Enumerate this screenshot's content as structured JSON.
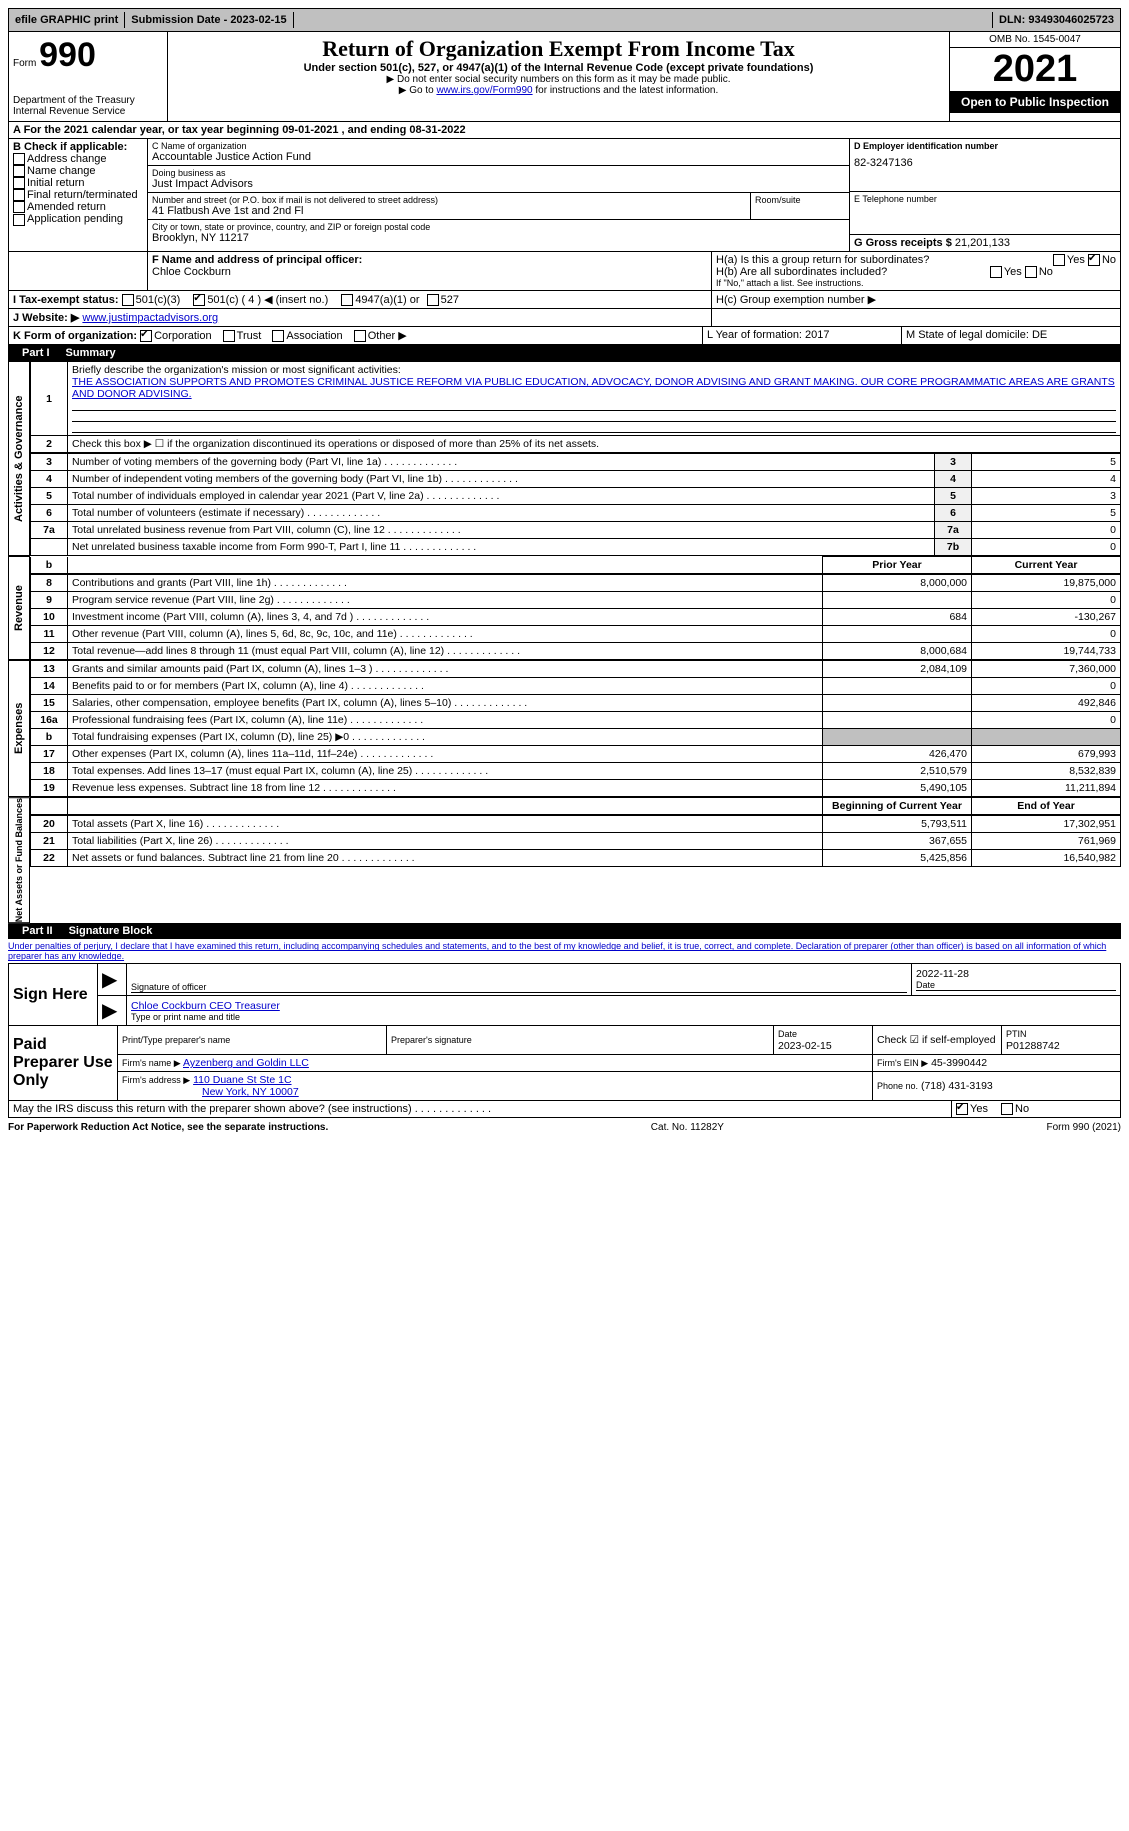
{
  "topbar": {
    "efile": "efile GRAPHIC print",
    "submission_label": "Submission Date - 2023-02-15",
    "dln": "DLN: 93493046025723"
  },
  "header": {
    "form_word": "Form",
    "form_num": "990",
    "dept": "Department of the Treasury",
    "irs": "Internal Revenue Service",
    "title": "Return of Organization Exempt From Income Tax",
    "subtitle": "Under section 501(c), 527, or 4947(a)(1) of the Internal Revenue Code (except private foundations)",
    "note1": "▶ Do not enter social security numbers on this form as it may be made public.",
    "note2_pre": "▶ Go to ",
    "note2_link": "www.irs.gov/Form990",
    "note2_post": " for instructions and the latest information.",
    "omb": "OMB No. 1545-0047",
    "year": "2021",
    "open": "Open to Public Inspection"
  },
  "period": {
    "A": "A For the 2021 calendar year, or tax year beginning 09-01-2021   , and ending 08-31-2022"
  },
  "B": {
    "label": "B Check if applicable:",
    "opts": [
      "Address change",
      "Name change",
      "Initial return",
      "Final return/terminated",
      "Amended return",
      "Application pending"
    ]
  },
  "C": {
    "name_label": "C Name of organization",
    "name": "Accountable Justice Action Fund",
    "dba_label": "Doing business as",
    "dba": "Just Impact Advisors",
    "street_label": "Number and street (or P.O. box if mail is not delivered to street address)",
    "street": "41 Flatbush Ave 1st and 2nd Fl",
    "room_label": "Room/suite",
    "city_label": "City or town, state or province, country, and ZIP or foreign postal code",
    "city": "Brooklyn, NY  11217"
  },
  "D": {
    "label": "D Employer identification number",
    "value": "82-3247136"
  },
  "E": {
    "label": "E Telephone number",
    "value": ""
  },
  "G": {
    "label": "G Gross receipts $",
    "value": "21,201,133"
  },
  "F": {
    "label": "F  Name and address of principal officer:",
    "name": "Chloe Cockburn"
  },
  "H": {
    "a": "H(a)  Is this a group return for subordinates?",
    "b": "H(b)  Are all subordinates included?",
    "note": "If \"No,\" attach a list. See instructions.",
    "c": "H(c)  Group exemption number ▶",
    "yes": "Yes",
    "no": "No"
  },
  "I": {
    "label": "I   Tax-exempt status:",
    "o1": "501(c)(3)",
    "o2": "501(c) ( 4 ) ◀ (insert no.)",
    "o3": "4947(a)(1) or",
    "o4": "527"
  },
  "J": {
    "label": "J   Website: ▶",
    "value": "www.justimpactadvisors.org"
  },
  "K": {
    "label": "K Form of organization:",
    "opts": [
      "Corporation",
      "Trust",
      "Association",
      "Other ▶"
    ],
    "L": "L Year of formation: 2017",
    "M": "M State of legal domicile: DE"
  },
  "part1": {
    "title": "Part I",
    "name": "Summary",
    "l1_label": "Briefly describe the organization's mission or most significant activities:",
    "l1_text": "THE ASSOCIATION SUPPORTS AND PROMOTES CRIMINAL JUSTICE REFORM VIA PUBLIC EDUCATION, ADVOCACY, DONOR ADVISING AND GRANT MAKING. OUR CORE PROGRAMMATIC AREAS ARE GRANTS AND DONOR ADVISING.",
    "l2": "Check this box ▶ ☐ if the organization discontinued its operations or disposed of more than 25% of its net assets.",
    "lines_ag": [
      {
        "n": "3",
        "t": "Number of voting members of the governing body (Part VI, line 1a)",
        "b": "3",
        "v": "5"
      },
      {
        "n": "4",
        "t": "Number of independent voting members of the governing body (Part VI, line 1b)",
        "b": "4",
        "v": "4"
      },
      {
        "n": "5",
        "t": "Total number of individuals employed in calendar year 2021 (Part V, line 2a)",
        "b": "5",
        "v": "3"
      },
      {
        "n": "6",
        "t": "Total number of volunteers (estimate if necessary)",
        "b": "6",
        "v": "5"
      },
      {
        "n": "7a",
        "t": "Total unrelated business revenue from Part VIII, column (C), line 12",
        "b": "7a",
        "v": "0"
      },
      {
        "n": "",
        "t": "Net unrelated business taxable income from Form 990-T, Part I, line 11",
        "b": "7b",
        "v": "0"
      }
    ],
    "col_prior": "Prior Year",
    "col_current": "Current Year",
    "revenue": [
      {
        "n": "8",
        "t": "Contributions and grants (Part VIII, line 1h)",
        "p": "8,000,000",
        "c": "19,875,000"
      },
      {
        "n": "9",
        "t": "Program service revenue (Part VIII, line 2g)",
        "p": "",
        "c": "0"
      },
      {
        "n": "10",
        "t": "Investment income (Part VIII, column (A), lines 3, 4, and 7d )",
        "p": "684",
        "c": "-130,267"
      },
      {
        "n": "11",
        "t": "Other revenue (Part VIII, column (A), lines 5, 6d, 8c, 9c, 10c, and 11e)",
        "p": "",
        "c": "0"
      },
      {
        "n": "12",
        "t": "Total revenue—add lines 8 through 11 (must equal Part VIII, column (A), line 12)",
        "p": "8,000,684",
        "c": "19,744,733"
      }
    ],
    "expenses": [
      {
        "n": "13",
        "t": "Grants and similar amounts paid (Part IX, column (A), lines 1–3 )",
        "p": "2,084,109",
        "c": "7,360,000"
      },
      {
        "n": "14",
        "t": "Benefits paid to or for members (Part IX, column (A), line 4)",
        "p": "",
        "c": "0"
      },
      {
        "n": "15",
        "t": "Salaries, other compensation, employee benefits (Part IX, column (A), lines 5–10)",
        "p": "",
        "c": "492,846"
      },
      {
        "n": "16a",
        "t": "Professional fundraising fees (Part IX, column (A), line 11e)",
        "p": "",
        "c": "0"
      },
      {
        "n": "b",
        "t": "Total fundraising expenses (Part IX, column (D), line 25) ▶0",
        "p": "GRAY",
        "c": "GRAY"
      },
      {
        "n": "17",
        "t": "Other expenses (Part IX, column (A), lines 11a–11d, 11f–24e)",
        "p": "426,470",
        "c": "679,993"
      },
      {
        "n": "18",
        "t": "Total expenses. Add lines 13–17 (must equal Part IX, column (A), line 25)",
        "p": "2,510,579",
        "c": "8,532,839"
      },
      {
        "n": "19",
        "t": "Revenue less expenses. Subtract line 18 from line 12",
        "p": "5,490,105",
        "c": "11,211,894"
      }
    ],
    "col_boy": "Beginning of Current Year",
    "col_eoy": "End of Year",
    "netassets": [
      {
        "n": "20",
        "t": "Total assets (Part X, line 16)",
        "p": "5,793,511",
        "c": "17,302,951"
      },
      {
        "n": "21",
        "t": "Total liabilities (Part X, line 26)",
        "p": "367,655",
        "c": "761,969"
      },
      {
        "n": "22",
        "t": "Net assets or fund balances. Subtract line 21 from line 20",
        "p": "5,425,856",
        "c": "16,540,982"
      }
    ]
  },
  "part2": {
    "title": "Part II",
    "name": "Signature Block",
    "penalty": "Under penalties of perjury, I declare that I have examined this return, including accompanying schedules and statements, and to the best of my knowledge and belief, it is true, correct, and complete. Declaration of preparer (other than officer) is based on all information of which preparer has any knowledge.",
    "sign_here": "Sign Here",
    "sig_officer": "Signature of officer",
    "date": "Date",
    "sig_date": "2022-11-28",
    "officer_name": "Chloe Cockburn CEO Treasurer",
    "type_name": "Type or print name and title",
    "paid": "Paid Preparer Use Only",
    "prep_name_label": "Print/Type preparer's name",
    "prep_sig_label": "Preparer's signature",
    "prep_date_label": "Date",
    "prep_date": "2023-02-15",
    "check_self": "Check ☑ if self-employed",
    "ptin_label": "PTIN",
    "ptin": "P01288742",
    "firm_name_label": "Firm's name    ▶",
    "firm_name": "Ayzenberg and Goldin LLC",
    "firm_ein_label": "Firm's EIN ▶",
    "firm_ein": "45-3990442",
    "firm_addr_label": "Firm's address ▶",
    "firm_addr1": "110 Duane St Ste 1C",
    "firm_addr2": "New York, NY  10007",
    "phone_label": "Phone no.",
    "phone": "(718) 431-3193",
    "discuss": "May the IRS discuss this return with the preparer shown above? (see instructions)",
    "yes": "Yes",
    "no": "No"
  },
  "footer": {
    "left": "For Paperwork Reduction Act Notice, see the separate instructions.",
    "mid": "Cat. No. 11282Y",
    "right": "Form 990 (2021)"
  },
  "vlabels": {
    "ag": "Activities & Governance",
    "rev": "Revenue",
    "exp": "Expenses",
    "na": "Net Assets or Fund Balances"
  }
}
